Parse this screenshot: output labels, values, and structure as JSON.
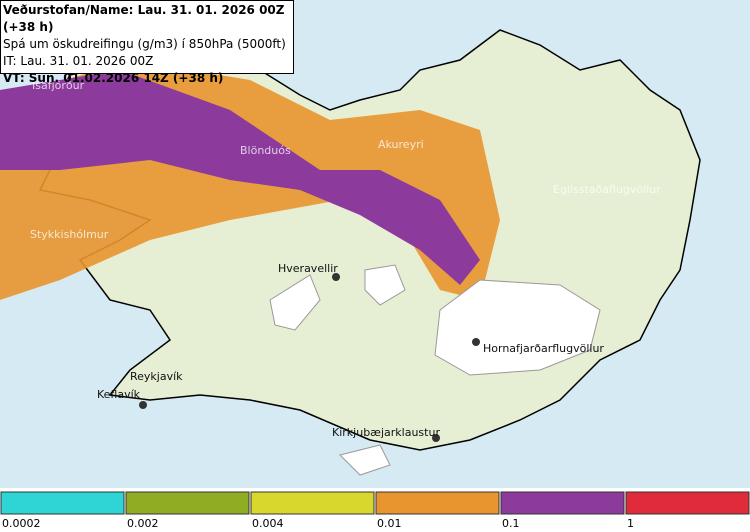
{
  "header": {
    "lines": [
      "Veðurstofan/Name: Lau. 31. 01. 2026 00Z (+38 h)",
      "Spá um öskudreifingu (g/m3) í 850hPa (5000ft)",
      "IT: Lau. 31. 01. 2026 00Z",
      "VT: Sun. 01.02.2026 14Z (+38 h)"
    ]
  },
  "places": [
    {
      "label": "Ísafjörður"
    },
    {
      "label": "Blönduós"
    },
    {
      "label": "Akureyri"
    },
    {
      "label": "Egilsstaðaflugvöllur"
    },
    {
      "label": "Stykkishólmur"
    },
    {
      "label": "Hveravellir"
    },
    {
      "label": "Hornafjarðarflugvöllur"
    },
    {
      "label": "Reykjavík"
    },
    {
      "label": "Keflavík"
    },
    {
      "label": "Kirkjubæjarklaustur"
    }
  ],
  "legend": {
    "colors": [
      "#2fd4d4",
      "#8fac22",
      "#d8d82c",
      "#e8952f",
      "#8d3a9d",
      "#e02b3b"
    ],
    "labels": [
      "0.0002",
      "0.002",
      "0.004",
      "0.01",
      "0.1",
      "1"
    ]
  }
}
